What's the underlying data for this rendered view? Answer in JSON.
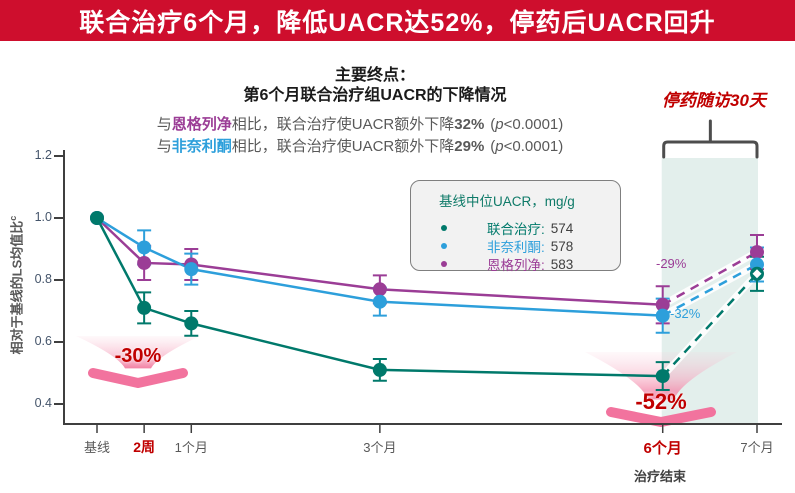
{
  "banner": {
    "title": "联合治疗6个月，降低UACR达52%，停药后UACR回升"
  },
  "header": {
    "title_line1": "主要终点：",
    "title_line2": "第6个月联合治疗组UACR的下降情况",
    "comparisons": [
      {
        "pre": "与",
        "drug": "恩格列净",
        "drug_color": "#9B3D96",
        "mid": "相比，联合治疗使UACR额外下降",
        "pct": "32%",
        "open": "(",
        "p": "p",
        "close": "<0.0001)"
      },
      {
        "pre": "与",
        "drug": "非奈利酮",
        "drug_color": "#2D9FDB",
        "mid": "相比，联合治疗使UACR额外下降",
        "pct": "29%",
        "open": "(",
        "p": "p",
        "close": "<0.0001)"
      }
    ]
  },
  "withdrawal": {
    "label": "停药随访30天"
  },
  "legend": {
    "title": "基线中位UACR，mg/g",
    "items": [
      {
        "label": "联合治疗:",
        "value": "574",
        "color": "#00796B"
      },
      {
        "label": "非奈利酮:",
        "value": "578",
        "color": "#2D9FDB"
      },
      {
        "label": "恩格列净:",
        "value": "583",
        "color": "#9B3D96"
      }
    ]
  },
  "colors": {
    "banner_bg": "#CE0E2D",
    "accent_red": "#C00000",
    "combo_green": "#00796B",
    "finerenone_blue": "#2D9FDB",
    "empagliflozin_purple": "#9B3D96",
    "shaded_region": "#E3EFEC"
  },
  "chart_data": {
    "type": "line",
    "title": "第6个月联合治疗组UACR的下降情况",
    "ylabel": "相对于基线的LS均值比",
    "ylabel_sup": "c",
    "ylim": [
      0.4,
      1.2
    ],
    "y_ticks": [
      "1.2",
      "1.0",
      "0.8",
      "0.6",
      "0.4"
    ],
    "x_categories": [
      "基线",
      "2周",
      "1个月",
      "3个月",
      "6个月",
      "7个月"
    ],
    "x_months": [
      0,
      0.5,
      1,
      3,
      6,
      7
    ],
    "x_emphasized_indices": [
      1,
      4
    ],
    "x_sub_label": {
      "index": 4,
      "text": "治疗结束"
    },
    "grid": false,
    "legend_position": "upper-middle",
    "series": [
      {
        "name": "联合治疗",
        "color": "#00796B",
        "values": [
          1.0,
          0.71,
          0.66,
          0.51,
          0.49,
          0.82
        ],
        "err": [
          0,
          0.05,
          0.04,
          0.035,
          0.045,
          0.055
        ],
        "last_marker": "diamond"
      },
      {
        "name": "非奈利酮",
        "color": "#2D9FDB",
        "values": [
          1.0,
          0.905,
          0.835,
          0.73,
          0.685,
          0.85
        ],
        "err": [
          0,
          0.055,
          0.05,
          0.045,
          0.055,
          0.055
        ]
      },
      {
        "name": "恩格列净",
        "color": "#9B3D96",
        "values": [
          1.0,
          0.855,
          0.85,
          0.77,
          0.72,
          0.89
        ],
        "err": [
          0,
          0.055,
          0.05,
          0.045,
          0.06,
          0.055
        ]
      }
    ],
    "dashed_segment": {
      "from_index": 4,
      "to_index": 5
    },
    "shaded_region": {
      "from_month": 6,
      "to_month": 7,
      "color": "#E3EFEC"
    },
    "annotations": {
      "wk2_drop": "-30%",
      "m6_drop": "-52%",
      "empa_rebound": "-29%",
      "fine_rebound": "-32%"
    }
  }
}
